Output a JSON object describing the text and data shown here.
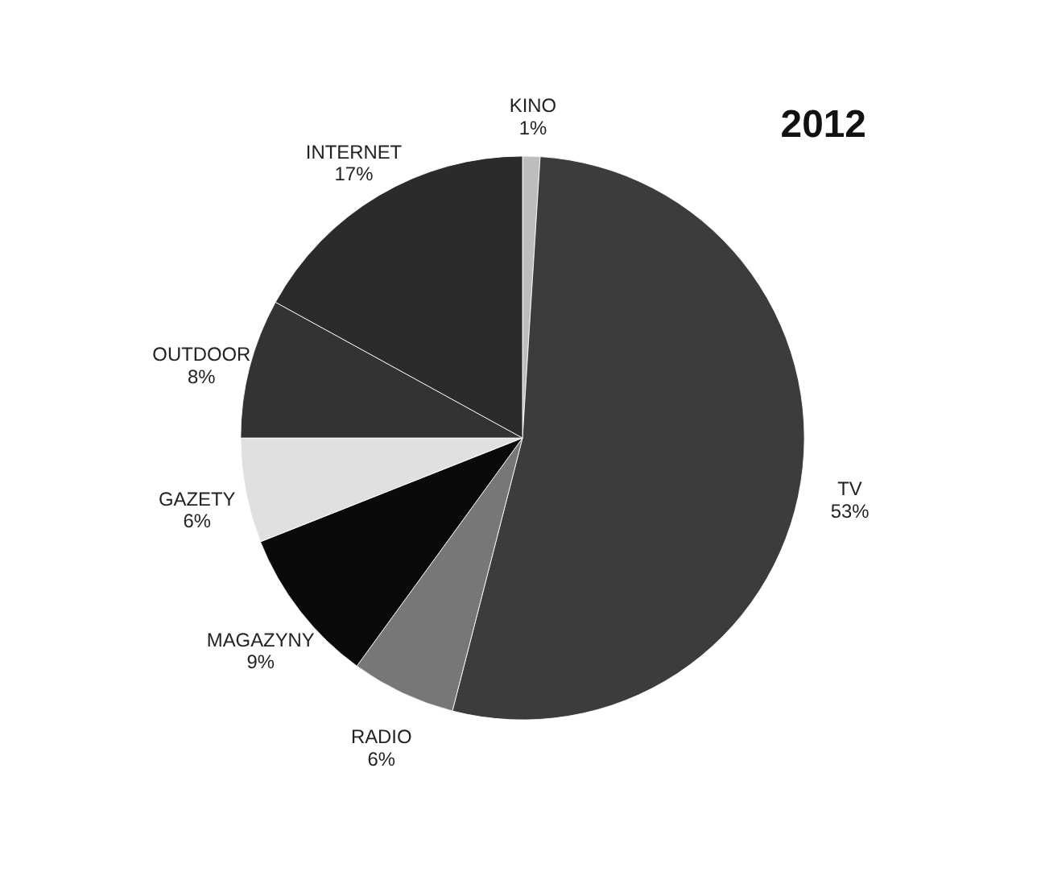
{
  "chart_data": {
    "type": "pie",
    "title": "2012",
    "categories": [
      "KINO",
      "TV",
      "RADIO",
      "MAGAZYNY",
      "GAZETY",
      "OUTDOOR",
      "INTERNET"
    ],
    "values": [
      1,
      53,
      6,
      9,
      6,
      8,
      17
    ],
    "value_labels": [
      "1%",
      "53%",
      "6%",
      "9%",
      "6%",
      "8%",
      "17%"
    ],
    "colors": [
      "#bdbdbd",
      "#3c3c3c",
      "#777777",
      "#0a0a0a",
      "#e0e0e0",
      "#333333",
      "#2b2b2b"
    ]
  }
}
